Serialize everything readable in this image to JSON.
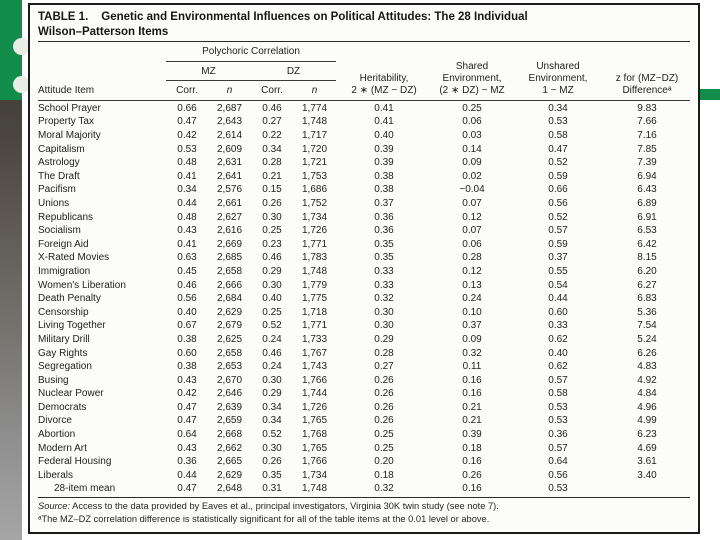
{
  "colors": {
    "accent_green": "#128c4b"
  },
  "table": {
    "title_label": "TABLE 1.",
    "title_text": "Genetic and Environmental Influences on Political Attitudes: The 28 Individual",
    "title_line2": "Wilson–Patterson Items",
    "group_header": "Polychoric Correlation",
    "subgroups": {
      "mz": "MZ",
      "dz": "DZ"
    },
    "col_headers": {
      "item": "Attitude Item",
      "corr": "Corr.",
      "n": "n",
      "heritability": "Heritability,\n2 ∗ (MZ − DZ)",
      "shared": "Shared\nEnvironment,\n(2 ∗ DZ) − MZ",
      "unshared": "Unshared\nEnvironment,\n1 − MZ",
      "z": "z for (MZ−DZ)\nDifferenceᵃ"
    },
    "rows": [
      {
        "item": "School Prayer",
        "mz_corr": "0.66",
        "mz_n": "2,687",
        "dz_corr": "0.46",
        "dz_n": "1,774",
        "heritability": "0.41",
        "shared": "0.25",
        "unshared": "0.34",
        "z": "9.83"
      },
      {
        "item": "Property Tax",
        "mz_corr": "0.47",
        "mz_n": "2,643",
        "dz_corr": "0.27",
        "dz_n": "1,748",
        "heritability": "0.41",
        "shared": "0.06",
        "unshared": "0.53",
        "z": "7.66"
      },
      {
        "item": "Moral Majority",
        "mz_corr": "0.42",
        "mz_n": "2,614",
        "dz_corr": "0.22",
        "dz_n": "1,717",
        "heritability": "0.40",
        "shared": "0.03",
        "unshared": "0.58",
        "z": "7.16"
      },
      {
        "item": "Capitalism",
        "mz_corr": "0.53",
        "mz_n": "2,609",
        "dz_corr": "0.34",
        "dz_n": "1,720",
        "heritability": "0.39",
        "shared": "0.14",
        "unshared": "0.47",
        "z": "7.85"
      },
      {
        "item": "Astrology",
        "mz_corr": "0.48",
        "mz_n": "2,631",
        "dz_corr": "0.28",
        "dz_n": "1,721",
        "heritability": "0.39",
        "shared": "0.09",
        "unshared": "0.52",
        "z": "7.39"
      },
      {
        "item": "The Draft",
        "mz_corr": "0.41",
        "mz_n": "2,641",
        "dz_corr": "0.21",
        "dz_n": "1,753",
        "heritability": "0.38",
        "shared": "0.02",
        "unshared": "0.59",
        "z": "6.94"
      },
      {
        "item": "Pacifism",
        "mz_corr": "0.34",
        "mz_n": "2,576",
        "dz_corr": "0.15",
        "dz_n": "1,686",
        "heritability": "0.38",
        "shared": "−0.04",
        "unshared": "0.66",
        "z": "6.43"
      },
      {
        "item": "Unions",
        "mz_corr": "0.44",
        "mz_n": "2,661",
        "dz_corr": "0.26",
        "dz_n": "1,752",
        "heritability": "0.37",
        "shared": "0.07",
        "unshared": "0.56",
        "z": "6.89"
      },
      {
        "item": "Republicans",
        "mz_corr": "0.48",
        "mz_n": "2,627",
        "dz_corr": "0.30",
        "dz_n": "1,734",
        "heritability": "0.36",
        "shared": "0.12",
        "unshared": "0.52",
        "z": "6.91"
      },
      {
        "item": "Socialism",
        "mz_corr": "0.43",
        "mz_n": "2,616",
        "dz_corr": "0.25",
        "dz_n": "1,726",
        "heritability": "0.36",
        "shared": "0.07",
        "unshared": "0.57",
        "z": "6.53"
      },
      {
        "item": "Foreign Aid",
        "mz_corr": "0.41",
        "mz_n": "2,669",
        "dz_corr": "0.23",
        "dz_n": "1,771",
        "heritability": "0.35",
        "shared": "0.06",
        "unshared": "0.59",
        "z": "6.42"
      },
      {
        "item": "X-Rated Movies",
        "mz_corr": "0.63",
        "mz_n": "2,685",
        "dz_corr": "0.46",
        "dz_n": "1,783",
        "heritability": "0.35",
        "shared": "0.28",
        "unshared": "0.37",
        "z": "8.15"
      },
      {
        "item": "Immigration",
        "mz_corr": "0.45",
        "mz_n": "2,658",
        "dz_corr": "0.29",
        "dz_n": "1,748",
        "heritability": "0.33",
        "shared": "0.12",
        "unshared": "0.55",
        "z": "6.20"
      },
      {
        "item": "Women's Liberation",
        "mz_corr": "0.46",
        "mz_n": "2,666",
        "dz_corr": "0.30",
        "dz_n": "1,779",
        "heritability": "0.33",
        "shared": "0.13",
        "unshared": "0.54",
        "z": "6.27"
      },
      {
        "item": "Death Penalty",
        "mz_corr": "0.56",
        "mz_n": "2,684",
        "dz_corr": "0.40",
        "dz_n": "1,775",
        "heritability": "0.32",
        "shared": "0.24",
        "unshared": "0.44",
        "z": "6.83"
      },
      {
        "item": "Censorship",
        "mz_corr": "0.40",
        "mz_n": "2,629",
        "dz_corr": "0.25",
        "dz_n": "1,718",
        "heritability": "0.30",
        "shared": "0.10",
        "unshared": "0.60",
        "z": "5.36"
      },
      {
        "item": "Living Together",
        "mz_corr": "0.67",
        "mz_n": "2,679",
        "dz_corr": "0.52",
        "dz_n": "1,771",
        "heritability": "0.30",
        "shared": "0.37",
        "unshared": "0.33",
        "z": "7.54"
      },
      {
        "item": "Military Drill",
        "mz_corr": "0.38",
        "mz_n": "2,625",
        "dz_corr": "0.24",
        "dz_n": "1,733",
        "heritability": "0.29",
        "shared": "0.09",
        "unshared": "0.62",
        "z": "5.24"
      },
      {
        "item": "Gay Rights",
        "mz_corr": "0.60",
        "mz_n": "2,658",
        "dz_corr": "0.46",
        "dz_n": "1,767",
        "heritability": "0.28",
        "shared": "0.32",
        "unshared": "0.40",
        "z": "6.26"
      },
      {
        "item": "Segregation",
        "mz_corr": "0.38",
        "mz_n": "2,653",
        "dz_corr": "0.24",
        "dz_n": "1,743",
        "heritability": "0.27",
        "shared": "0.11",
        "unshared": "0.62",
        "z": "4.83"
      },
      {
        "item": "Busing",
        "mz_corr": "0.43",
        "mz_n": "2,670",
        "dz_corr": "0.30",
        "dz_n": "1,766",
        "heritability": "0.26",
        "shared": "0.16",
        "unshared": "0.57",
        "z": "4.92"
      },
      {
        "item": "Nuclear Power",
        "mz_corr": "0.42",
        "mz_n": "2,646",
        "dz_corr": "0.29",
        "dz_n": "1,744",
        "heritability": "0.26",
        "shared": "0.16",
        "unshared": "0.58",
        "z": "4.84"
      },
      {
        "item": "Democrats",
        "mz_corr": "0.47",
        "mz_n": "2,639",
        "dz_corr": "0.34",
        "dz_n": "1,726",
        "heritability": "0.26",
        "shared": "0.21",
        "unshared": "0.53",
        "z": "4.96"
      },
      {
        "item": "Divorce",
        "mz_corr": "0.47",
        "mz_n": "2,659",
        "dz_corr": "0.34",
        "dz_n": "1,765",
        "heritability": "0.26",
        "shared": "0.21",
        "unshared": "0.53",
        "z": "4.99"
      },
      {
        "item": "Abortion",
        "mz_corr": "0.64",
        "mz_n": "2,668",
        "dz_corr": "0.52",
        "dz_n": "1,768",
        "heritability": "0.25",
        "shared": "0.39",
        "unshared": "0.36",
        "z": "6.23"
      },
      {
        "item": "Modern Art",
        "mz_corr": "0.43",
        "mz_n": "2,662",
        "dz_corr": "0.30",
        "dz_n": "1,765",
        "heritability": "0.25",
        "shared": "0.18",
        "unshared": "0.57",
        "z": "4.69"
      },
      {
        "item": "Federal Housing",
        "mz_corr": "0.36",
        "mz_n": "2,665",
        "dz_corr": "0.26",
        "dz_n": "1,766",
        "heritability": "0.20",
        "shared": "0.16",
        "unshared": "0.64",
        "z": "3.61"
      },
      {
        "item": "Liberals",
        "mz_corr": "0.44",
        "mz_n": "2,629",
        "dz_corr": "0.35",
        "dz_n": "1,734",
        "heritability": "0.18",
        "shared": "0.26",
        "unshared": "0.56",
        "z": "3.40"
      },
      {
        "item": "28-item mean",
        "indent": true,
        "mz_corr": "0.47",
        "mz_n": "2,648",
        "dz_corr": "0.31",
        "dz_n": "1,748",
        "heritability": "0.32",
        "shared": "0.16",
        "unshared": "0.53",
        "z": ""
      }
    ],
    "source_label": "Source:",
    "source_text": "Access to the data provided by Eaves et al., principal investigators, Virginia 30K twin study (see note 7).",
    "footnote": "ᵃThe MZ–DZ correlation difference is statistically significant for all of the table items at the 0.01 level or above."
  }
}
